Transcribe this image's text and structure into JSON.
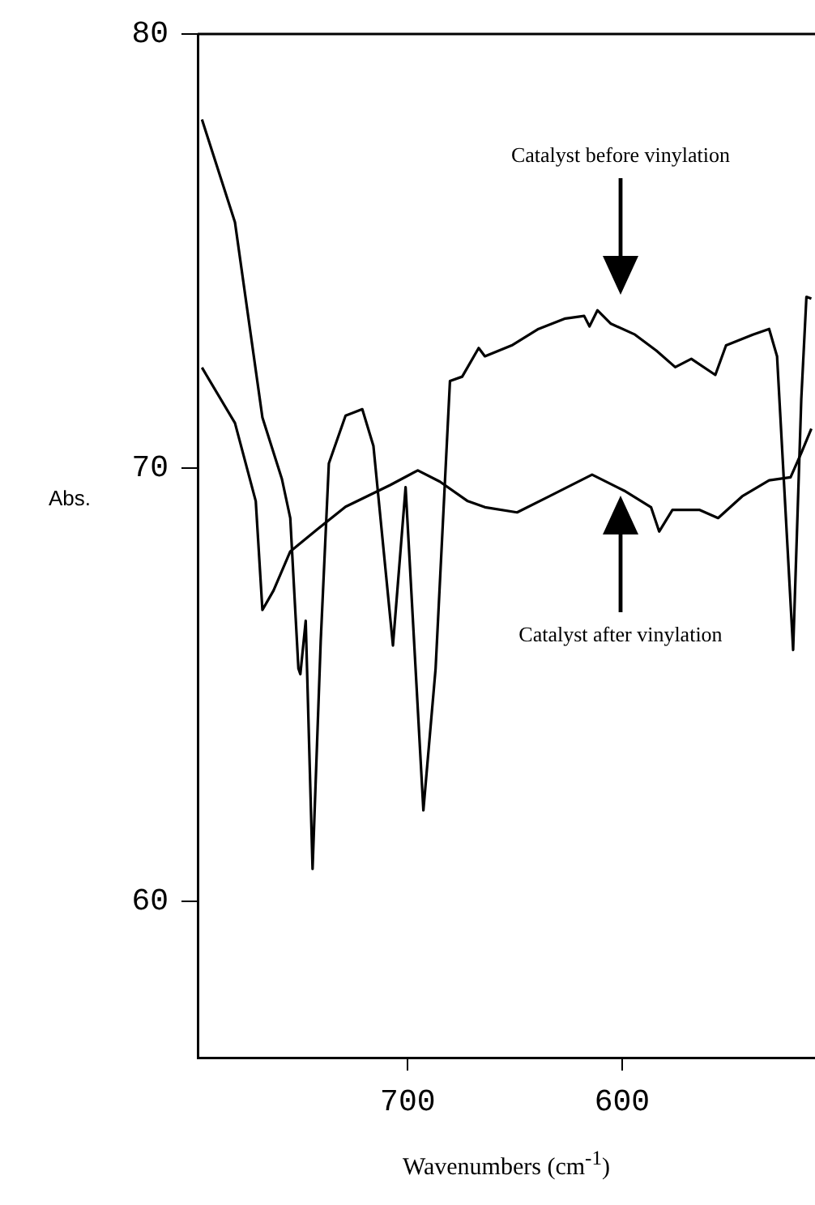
{
  "chart_data": {
    "type": "line",
    "xlabel": "Wavenumbers (cm$^{-1}$)",
    "ylabel": "Abs.",
    "xlim": [
      798,
      510
    ],
    "xticks": [
      700,
      600
    ],
    "ylim": [
      56.4,
      80
    ],
    "yticks": [
      60,
      70,
      80
    ],
    "grid": false,
    "legend": false,
    "marker": "none",
    "line_style": "solid",
    "series": [
      {
        "color": "#000000",
        "x": [
          796,
          780.6,
          767.8,
          758.7,
          754.8,
          751,
          750.1,
          747.6,
          744.4,
          740.6,
          736.8,
          729,
          721.2,
          716,
          706.9,
          701,
          692.7,
          687,
          680.3,
          674.6,
          666.9,
          664,
          651.5,
          639,
          626.5,
          617.7,
          615.2,
          611.5,
          605.2,
          594,
          584,
          575.2,
          567.7,
          556.5,
          551.5,
          539,
          531.4,
          527.7,
          520.2,
          516.4,
          514,
          511.7
        ],
        "values": [
          78.03,
          75.66,
          71.16,
          69.74,
          68.84,
          65.37,
          65.24,
          66.47,
          60.75,
          66.0,
          70.1,
          71.2,
          71.35,
          70.5,
          65.9,
          69.55,
          62.1,
          65.37,
          72.0,
          72.1,
          72.76,
          72.57,
          72.82,
          73.2,
          73.44,
          73.5,
          73.26,
          73.63,
          73.32,
          73.07,
          72.7,
          72.32,
          72.51,
          72.14,
          72.82,
          73.07,
          73.2,
          72.57,
          65.8,
          71.58,
          73.94,
          73.9
        ]
      },
      {
        "color": "#000000",
        "x": [
          796,
          780.6,
          770.9,
          767.8,
          762.6,
          754.8,
          741.9,
          729,
          708.2,
          695.3,
          685,
          672,
          664,
          649,
          634,
          614,
          599,
          586.5,
          582.7,
          576.5,
          564,
          555.2,
          544,
          531.4,
          521.4,
          516.4,
          511.7
        ],
        "values": [
          72.31,
          71.03,
          69.23,
          66.72,
          67.17,
          68.07,
          68.59,
          69.1,
          69.6,
          69.94,
          69.68,
          69.23,
          69.09,
          68.97,
          69.34,
          69.84,
          69.47,
          69.09,
          68.53,
          69.03,
          69.03,
          68.84,
          69.34,
          69.71,
          69.78,
          70.34,
          70.9
        ]
      }
    ],
    "annotations": [
      "Catalyst before vinylation",
      "Catalyst after vinylation"
    ]
  }
}
